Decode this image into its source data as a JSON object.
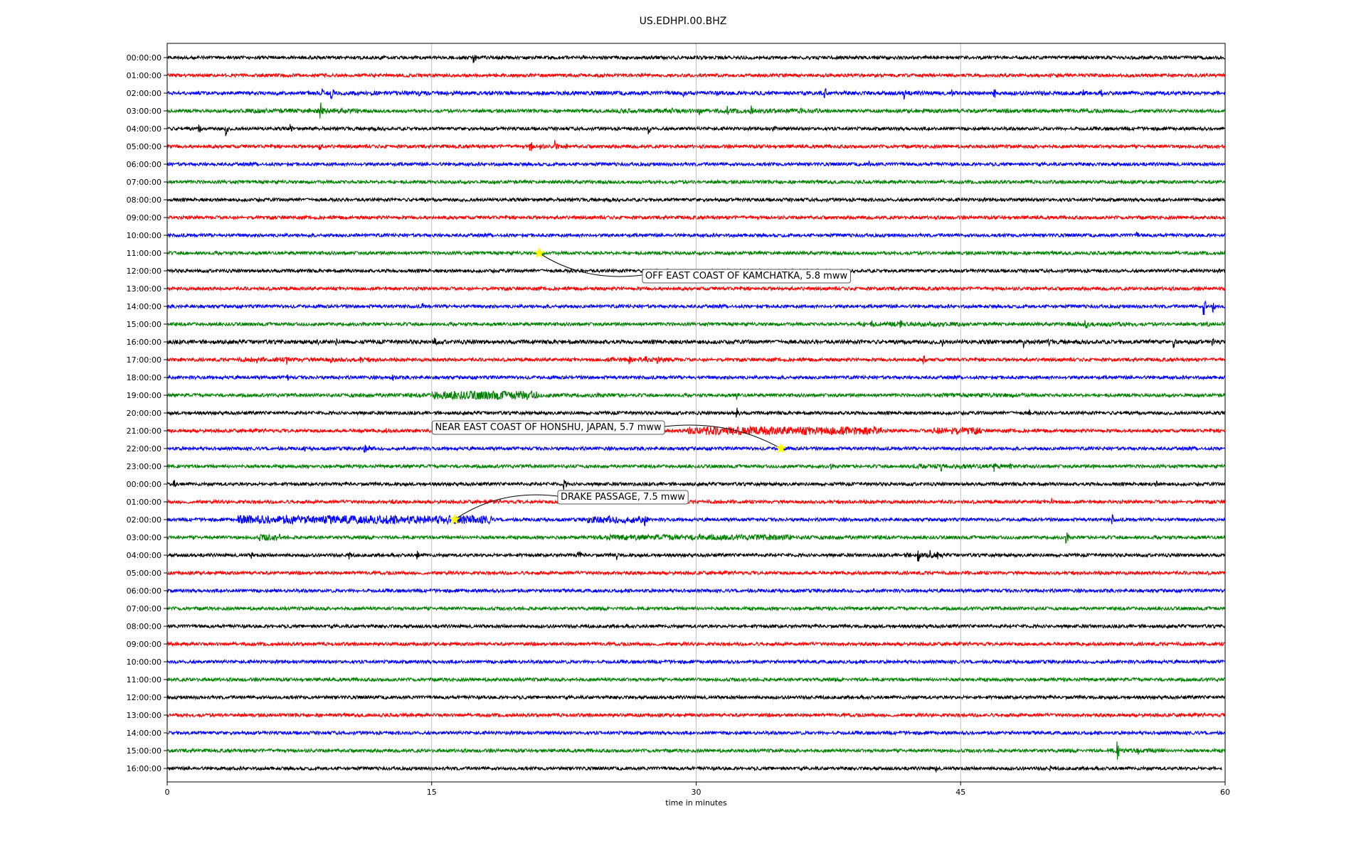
{
  "chart_data": {
    "type": "line",
    "title": "US.EDHPI.00.BHZ",
    "xlabel": "time in minutes",
    "ylabel": "",
    "xlim": [
      0,
      60
    ],
    "xticks": [
      0,
      15,
      30,
      45,
      60
    ],
    "grid": "vertical lines at 15-minute ticks",
    "legend": "none",
    "trace_colors": [
      "#000000",
      "#ff0000",
      "#0000ff",
      "#008000"
    ],
    "row_labels": [
      "00:00:00",
      "01:00:00",
      "02:00:00",
      "03:00:00",
      "04:00:00",
      "05:00:00",
      "06:00:00",
      "07:00:00",
      "08:00:00",
      "09:00:00",
      "10:00:00",
      "11:00:00",
      "12:00:00",
      "13:00:00",
      "14:00:00",
      "15:00:00",
      "16:00:00",
      "17:00:00",
      "18:00:00",
      "19:00:00",
      "20:00:00",
      "21:00:00",
      "22:00:00",
      "23:00:00",
      "00:00:00",
      "01:00:00",
      "02:00:00",
      "03:00:00",
      "04:00:00",
      "05:00:00",
      "06:00:00",
      "07:00:00",
      "08:00:00",
      "09:00:00",
      "10:00:00",
      "11:00:00",
      "12:00:00",
      "13:00:00",
      "14:00:00",
      "15:00:00",
      "16:00:00"
    ],
    "last_row_end_minute": 59.8,
    "events": [
      {
        "row": 11,
        "minute": 21.1,
        "label": "OFF EAST COAST OF KAMCHATKA, 5.8 mww"
      },
      {
        "row": 22,
        "minute": 34.8,
        "label": "NEAR EAST COAST OF HONSHU, JAPAN, 5.7 mww"
      },
      {
        "row": 26,
        "minute": 16.3,
        "label": "DRAKE PASSAGE, 7.5 mww"
      }
    ],
    "event_marker_color": "#ffff00",
    "bursts": [
      [
        0,
        17.4,
        14
      ],
      [
        2,
        9.3,
        12
      ],
      [
        2,
        8.8,
        8
      ],
      [
        2,
        37.3,
        9
      ],
      [
        2,
        41.8,
        10
      ],
      [
        2,
        44.5,
        7
      ],
      [
        2,
        46.9,
        9
      ],
      [
        2,
        52,
        6
      ],
      [
        2,
        53,
        6
      ],
      [
        2,
        6.2,
        5
      ],
      [
        2,
        14.3,
        4
      ],
      [
        2,
        29.3,
        5
      ],
      [
        2,
        39.8,
        5
      ],
      [
        3,
        8.7,
        13
      ],
      [
        3,
        28.6,
        6
      ],
      [
        3,
        30.2,
        7
      ],
      [
        3,
        31.8,
        8
      ],
      [
        3,
        33.1,
        9
      ],
      [
        3,
        36,
        6
      ],
      [
        3,
        32.5,
        5
      ],
      [
        4,
        1.8,
        8
      ],
      [
        4,
        3.3,
        12
      ],
      [
        4,
        7,
        7
      ],
      [
        4,
        27.3,
        9
      ],
      [
        4,
        34.4,
        6
      ],
      [
        5,
        8.6,
        9
      ],
      [
        5,
        20.6,
        10
      ],
      [
        5,
        22,
        10
      ],
      [
        5,
        21.2,
        8
      ],
      [
        5,
        22.6,
        6
      ],
      [
        6,
        39.8,
        5
      ],
      [
        10,
        55,
        5
      ],
      [
        14,
        14.5,
        5
      ],
      [
        14,
        58.8,
        13
      ],
      [
        14,
        59.3,
        10
      ],
      [
        15,
        40,
        6
      ],
      [
        15,
        41.6,
        8
      ],
      [
        15,
        44,
        5
      ],
      [
        15,
        52.1,
        9
      ],
      [
        15,
        53.2,
        6
      ],
      [
        15,
        59,
        5
      ],
      [
        16,
        8.5,
        6
      ],
      [
        16,
        9.6,
        5
      ],
      [
        16,
        15.2,
        8
      ],
      [
        16,
        44,
        6
      ],
      [
        16,
        46.6,
        5
      ],
      [
        16,
        48.6,
        9
      ],
      [
        16,
        50,
        6
      ],
      [
        16,
        55.7,
        6
      ],
      [
        16,
        57.1,
        9
      ],
      [
        16,
        59.3,
        6
      ],
      [
        17,
        5.1,
        5
      ],
      [
        17,
        6.8,
        10
      ],
      [
        17,
        9.3,
        6
      ],
      [
        17,
        10.9,
        7
      ],
      [
        17,
        26.2,
        8
      ],
      [
        17,
        27.1,
        9
      ],
      [
        17,
        27.8,
        6
      ],
      [
        17,
        28.4,
        5
      ],
      [
        17,
        42.9,
        9
      ],
      [
        18,
        6.8,
        6
      ],
      [
        18,
        12.8,
        7
      ],
      [
        19,
        16.5,
        4
      ],
      [
        19,
        32.3,
        8
      ],
      [
        19,
        45.8,
        5
      ],
      [
        20,
        32.3,
        9
      ],
      [
        20,
        38.5,
        5
      ],
      [
        20,
        48.9,
        5
      ],
      [
        21,
        10.9,
        8
      ],
      [
        21,
        12.4,
        7
      ],
      [
        21,
        38.1,
        5
      ],
      [
        22,
        11.2,
        9
      ],
      [
        22,
        11.5,
        7
      ],
      [
        22,
        7.8,
        4
      ],
      [
        23,
        37.6,
        6
      ],
      [
        23,
        43.9,
        8
      ],
      [
        23,
        44.7,
        6
      ],
      [
        23,
        46.9,
        8
      ],
      [
        23,
        47.8,
        6
      ],
      [
        23,
        52.5,
        5
      ],
      [
        24,
        0.4,
        7
      ],
      [
        24,
        22.5,
        9
      ],
      [
        24,
        56.1,
        5
      ],
      [
        25,
        50.2,
        6
      ],
      [
        25,
        12.8,
        4
      ],
      [
        26,
        27.1,
        9
      ],
      [
        26,
        53.6,
        8
      ],
      [
        27,
        5.8,
        5
      ],
      [
        27,
        30.2,
        6
      ],
      [
        27,
        33.6,
        5
      ],
      [
        27,
        34.9,
        5
      ],
      [
        27,
        51,
        9
      ],
      [
        28,
        4.8,
        6
      ],
      [
        28,
        10.3,
        8
      ],
      [
        28,
        14.2,
        7
      ],
      [
        28,
        23.3,
        10
      ],
      [
        28,
        25.5,
        7
      ],
      [
        28,
        42.6,
        10
      ],
      [
        28,
        43.3,
        8
      ],
      [
        28,
        43.7,
        6
      ],
      [
        39,
        53.9,
        13
      ],
      [
        39,
        55.1,
        6
      ],
      [
        39,
        56.3,
        5
      ],
      [
        40,
        43.6,
        6
      ],
      [
        40,
        50.1,
        5
      ]
    ],
    "noisy_segments": [
      [
        2,
        8,
        60,
        1.2
      ],
      [
        3,
        4,
        11,
        1.4
      ],
      [
        3,
        25,
        37,
        1.3
      ],
      [
        3,
        42,
        55,
        1.2
      ],
      [
        15,
        39,
        45,
        1.4
      ],
      [
        15,
        51,
        55,
        1.3
      ],
      [
        16,
        0,
        60,
        1.2
      ],
      [
        17,
        4,
        12,
        1.3
      ],
      [
        17,
        25,
        29,
        1.4
      ],
      [
        19,
        15,
        21,
        2.2
      ],
      [
        19,
        10,
        26,
        1.2
      ],
      [
        19,
        44,
        49,
        1.3
      ],
      [
        21,
        29.5,
        40.5,
        2.6
      ],
      [
        21,
        43.4,
        46.2,
        2.2
      ],
      [
        23,
        42,
        47.5,
        1.4
      ],
      [
        26,
        4,
        18.4,
        2.6
      ],
      [
        26,
        23.8,
        27.2,
        2.2
      ],
      [
        27,
        5.2,
        6.4,
        2
      ],
      [
        27,
        24.5,
        35.5,
        1.7
      ],
      [
        27,
        36,
        41,
        1.2
      ],
      [
        28,
        41.8,
        44,
        1.4
      ],
      [
        39,
        53.5,
        56.5,
        1.4
      ]
    ]
  }
}
